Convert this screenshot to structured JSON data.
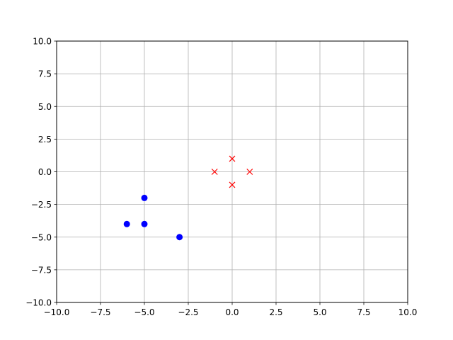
{
  "chart_data": {
    "type": "scatter",
    "title": "",
    "xlabel": "",
    "ylabel": "",
    "xlim": [
      -10,
      10
    ],
    "ylim": [
      -10,
      10
    ],
    "xticks": [
      -10,
      -7.5,
      -5,
      -2.5,
      0,
      2.5,
      5,
      7.5,
      10
    ],
    "yticks": [
      -10,
      -7.5,
      -5,
      -2.5,
      0,
      2.5,
      5,
      7.5,
      10
    ],
    "xtick_labels": [
      "−10.0",
      "−7.5",
      "−5.0",
      "−2.5",
      "0.0",
      "2.5",
      "5.0",
      "7.5",
      "10.0"
    ],
    "ytick_labels": [
      "−10.0",
      "−7.5",
      "−5.0",
      "−2.5",
      "0.0",
      "2.5",
      "5.0",
      "7.5",
      "10.0"
    ],
    "grid": true,
    "series": [
      {
        "marker": "circle",
        "color": "#0000ff",
        "points": [
          [
            -5,
            -2
          ],
          [
            -6,
            -4
          ],
          [
            -5,
            -4
          ],
          [
            -3,
            -5
          ]
        ]
      },
      {
        "marker": "x",
        "color": "#ff0000",
        "points": [
          [
            0,
            1
          ],
          [
            -1,
            0
          ],
          [
            1,
            0
          ],
          [
            0,
            -1
          ]
        ]
      }
    ]
  }
}
